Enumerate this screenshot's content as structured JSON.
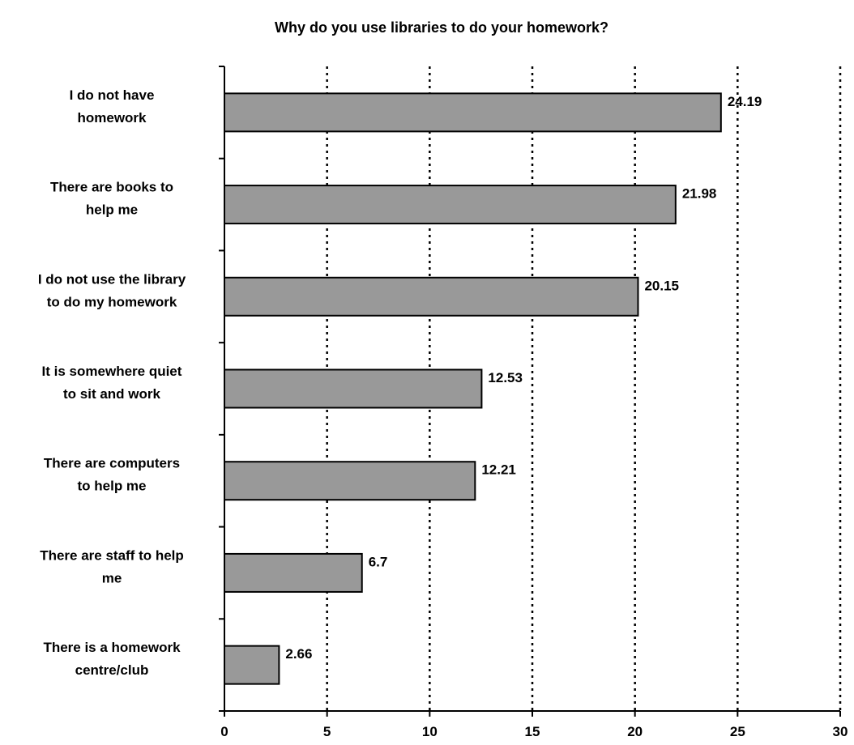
{
  "chart_data": {
    "type": "bar",
    "orientation": "horizontal",
    "title": "Why do you use libraries to do your homework?",
    "xlabel": "",
    "ylabel": "",
    "categories": [
      [
        "I do not have",
        "homework"
      ],
      [
        "There are books to",
        "help me"
      ],
      [
        "I do not use the library",
        "to do my homework"
      ],
      [
        "It is somewhere quiet",
        "to sit and work"
      ],
      [
        "There are computers",
        "to help me"
      ],
      [
        "There are staff to help",
        "me"
      ],
      [
        "There is a homework",
        "centre/club"
      ]
    ],
    "values": [
      24.19,
      21.98,
      20.15,
      12.53,
      12.21,
      6.7,
      2.66
    ],
    "value_labels": [
      "24.19",
      "21.98",
      "20.15",
      "12.53",
      "12.21",
      "6.7",
      "2.66"
    ],
    "xlim": [
      0,
      30
    ],
    "xticks": [
      0,
      5,
      10,
      15,
      20,
      25,
      30
    ],
    "grid": "vertical dotted",
    "legend": "none",
    "bar_color": "#999999",
    "bar_edge_color": "#000000"
  }
}
